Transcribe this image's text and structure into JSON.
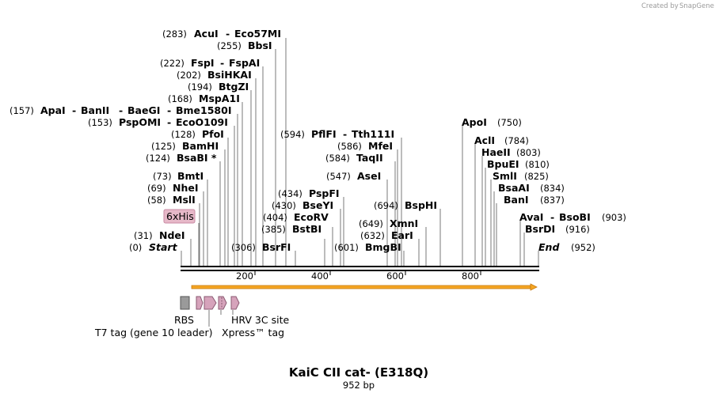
{
  "credit": {
    "created_by": "Created by",
    "brand": "SnapGene"
  },
  "map": {
    "title": "KaiC CII cat- (E318Q)",
    "length_label": "952 bp",
    "start_label": "Start",
    "start_pos": "(0)",
    "end_label": "End",
    "end_pos": "(952)",
    "ticks": [
      "200",
      "400",
      "600",
      "800"
    ],
    "orf_color": "#f5a623"
  },
  "sites": {
    "acui": {
      "pos": "(283)",
      "name": "AcuI"
    },
    "eco57mi": {
      "name": "Eco57MI"
    },
    "bbsi": {
      "pos": "(255)",
      "name": "BbsI"
    },
    "fspi": {
      "pos": "(222)",
      "name": "FspI"
    },
    "fspai": {
      "name": "FspAI"
    },
    "bsihkai": {
      "pos": "(202)",
      "name": "BsiHKAI"
    },
    "btgzi": {
      "pos": "(194)",
      "name": "BtgZI"
    },
    "mspa1i": {
      "pos": "(168)",
      "name": "MspA1I"
    },
    "apai": {
      "pos": "(157)",
      "name": "ApaI"
    },
    "banii": {
      "name": "BanII"
    },
    "baegi": {
      "name": "BaeGI"
    },
    "bme1580i": {
      "name": "Bme1580I"
    },
    "pspomi": {
      "pos": "(153)",
      "name": "PspOMI"
    },
    "ecoo109i": {
      "name": "EcoO109I"
    },
    "pfoi": {
      "pos": "(128)",
      "name": "PfoI"
    },
    "bamhi": {
      "pos": "(125)",
      "name": "BamHI"
    },
    "bsabi": {
      "pos": "(124)",
      "name": "BsaBI *"
    },
    "bmti": {
      "pos": "(73)",
      "name": "BmtI"
    },
    "nhei": {
      "pos": "(69)",
      "name": "NheI"
    },
    "msli": {
      "pos": "(58)",
      "name": "MslI"
    },
    "ndei": {
      "pos": "(31)",
      "name": "NdeI"
    },
    "bsrfi": {
      "pos": "(306)",
      "name": "BsrFI"
    },
    "bstbi": {
      "pos": "(385)",
      "name": "BstBI"
    },
    "ecorv": {
      "pos": "(404)",
      "name": "EcoRV"
    },
    "bseyi": {
      "pos": "(430)",
      "name": "BseYI"
    },
    "pspfi": {
      "pos": "(434)",
      "name": "PspFI"
    },
    "pflfi": {
      "pos": "(594)",
      "name": "PflFI"
    },
    "tth111i": {
      "name": "Tth111I"
    },
    "mfei": {
      "pos": "(586)",
      "name": "MfeI"
    },
    "taqii": {
      "pos": "(584)",
      "name": "TaqII"
    },
    "asei": {
      "pos": "(547)",
      "name": "AseI"
    },
    "bsphi": {
      "pos": "(694)",
      "name": "BspHI"
    },
    "xmni": {
      "pos": "(649)",
      "name": "XmnI"
    },
    "eari": {
      "pos": "(632)",
      "name": "EarI"
    },
    "bmgbi": {
      "pos": "(601)",
      "name": "BmgBI"
    },
    "apoi": {
      "pos": "(750)",
      "name": "ApoI"
    },
    "acli": {
      "pos": "(784)",
      "name": "AclI"
    },
    "haeii": {
      "pos": "(803)",
      "name": "HaeII"
    },
    "bpuei": {
      "pos": "(810)",
      "name": "BpuEI"
    },
    "smli": {
      "pos": "(825)",
      "name": "SmlI"
    },
    "bsaai": {
      "pos": "(834)",
      "name": "BsaAI"
    },
    "bani": {
      "pos": "(837)",
      "name": "BanI"
    },
    "avai": {
      "pos": "(903)",
      "name": "AvaI"
    },
    "bsobi": {
      "name": "BsoBI"
    },
    "bsrdi": {
      "pos": "(916)",
      "name": "BsrDI"
    }
  },
  "features": {
    "his_tag": "6xHis",
    "rbs": "RBS",
    "t7_tag": "T7 tag (gene 10 leader)",
    "hrv_site": "HRV 3C site",
    "xpress_tag": "Xpress™ tag"
  }
}
